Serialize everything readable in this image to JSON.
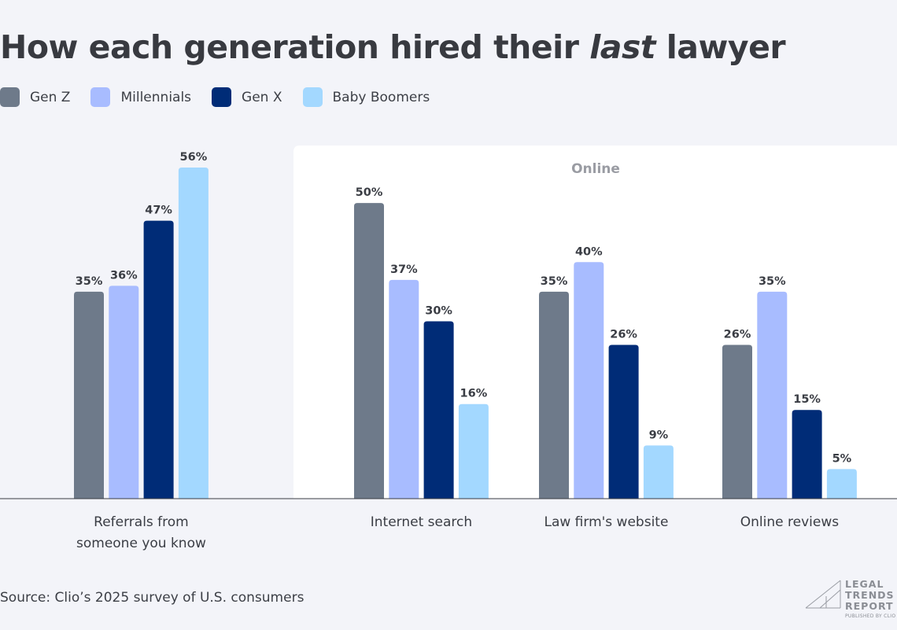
{
  "title_pre": "How each generation hired their ",
  "title_em": "last",
  "title_post": " lawyer",
  "source": "Source: Clio’s 2025 survey of U.S. consumers",
  "logo": {
    "line1": "LEGAL",
    "line2": "TRENDS",
    "line3": "REPORT",
    "published": "PUBLISHED BY CLIO"
  },
  "chart_data": {
    "type": "bar",
    "panel_label": "Online",
    "categories": [
      "Referrals from\nsomeone you know",
      "Internet search",
      "Law firm's website",
      "Online reviews"
    ],
    "series": [
      {
        "name": "Gen Z",
        "color": "#6e7a8a",
        "values": [
          35,
          50,
          35,
          26
        ]
      },
      {
        "name": "Millennials",
        "color": "#a8bcff",
        "values": [
          36,
          37,
          40,
          35
        ]
      },
      {
        "name": "Gen X",
        "color": "#002c77",
        "values": [
          47,
          30,
          26,
          15
        ]
      },
      {
        "name": "Baby Boomers",
        "color": "#a3d8ff",
        "values": [
          56,
          16,
          9,
          5
        ]
      }
    ],
    "value_suffix": "%",
    "ylim": [
      0,
      56
    ],
    "grid": false,
    "legend_placement": "top-left"
  }
}
